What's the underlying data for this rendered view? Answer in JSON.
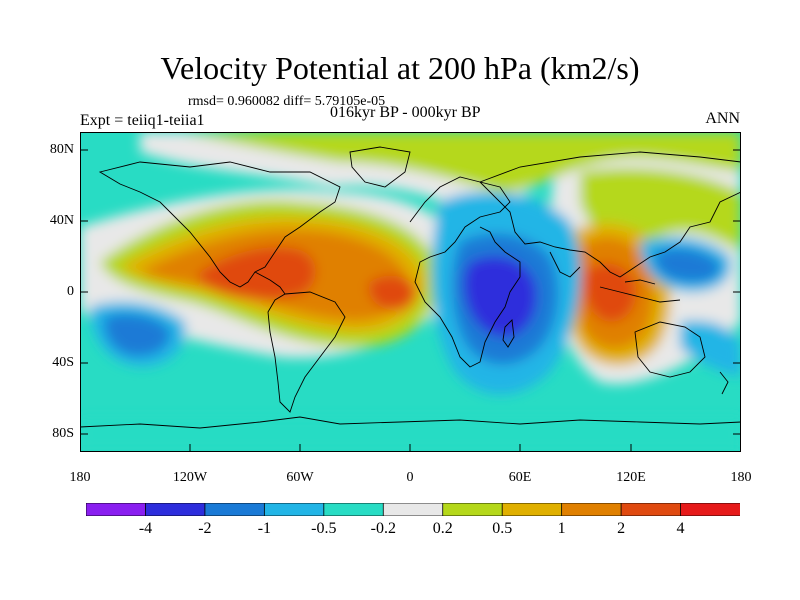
{
  "title": "Velocity Potential at 200 hPa (km2/s)",
  "stats": "rmsd= 0.960082 diff= 5.79105e-05",
  "left_label": "Expt = teiiq1-teiia1",
  "subtitle": "016kyr BP - 000kyr BP",
  "season": "ANN",
  "y_ticks": [
    "80N",
    "40N",
    "0",
    "40S",
    "80S"
  ],
  "x_ticks": [
    "180",
    "120W",
    "60W",
    "0",
    "60E",
    "120E",
    "180"
  ],
  "colorbar": {
    "colors": [
      "#8a1ff0",
      "#2d2ddc",
      "#1a7ad6",
      "#22b5e6",
      "#28dcc4",
      "#e8e8e8",
      "#b5d81a",
      "#e0b000",
      "#e08000",
      "#e04a10",
      "#e61a1a"
    ],
    "labels": [
      "-4",
      "-2",
      "-1",
      "-0.5",
      "-0.2",
      "0.2",
      "0.5",
      "1",
      "2",
      "4"
    ]
  },
  "chart_data": {
    "type": "heatmap",
    "title": "Velocity Potential at 200 hPa (km2/s)",
    "projection": "cylindrical-equidistant",
    "lon_range": [
      -180,
      180
    ],
    "lat_range": [
      -90,
      90
    ],
    "contour_levels": [
      -4,
      -2,
      -1,
      -0.5,
      -0.2,
      0.2,
      0.5,
      1,
      2,
      4
    ],
    "features": [
      {
        "name": "central-america-positive",
        "lon": -95,
        "lat": 3,
        "peak": "2 to 4"
      },
      {
        "name": "equatorial-atlantic-positive",
        "lon": -10,
        "lat": 0,
        "peak": "2 to 4"
      },
      {
        "name": "maritime-continent-positive",
        "lon": 100,
        "lat": -3,
        "peak": "2 to 4"
      },
      {
        "name": "indian-ocean-negative",
        "lon": 60,
        "lat": -3,
        "peak": "-2 to -4"
      },
      {
        "name": "south-pacific-negative",
        "lon": -150,
        "lat": -25,
        "peak": "-1 to -0.5"
      },
      {
        "name": "west-pacific-negative",
        "lon": 150,
        "lat": 12,
        "peak": "-1 to -0.5"
      }
    ]
  }
}
